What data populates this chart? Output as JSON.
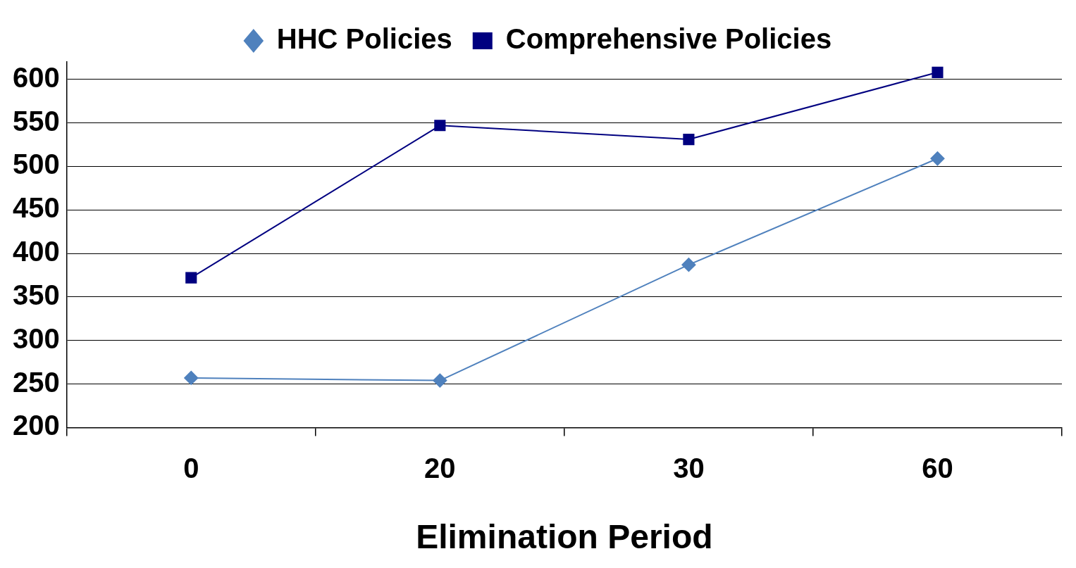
{
  "chart_data": {
    "type": "line",
    "xlabel": "Elimination Period",
    "categories": [
      "0",
      "20",
      "30",
      "60"
    ],
    "series": [
      {
        "name": "HHC Policies",
        "color": "#4f81bd",
        "marker": "diamond",
        "values": [
          257,
          254,
          387,
          509
        ]
      },
      {
        "name": "Comprehensive Policies",
        "color": "#000080",
        "marker": "square",
        "values": [
          372,
          547,
          531,
          608
        ]
      }
    ],
    "ylim": [
      200,
      620
    ],
    "yticks": [
      200,
      250,
      300,
      350,
      400,
      450,
      500,
      550,
      600
    ],
    "grid": "y",
    "legend": "top",
    "line_style": "solid"
  }
}
